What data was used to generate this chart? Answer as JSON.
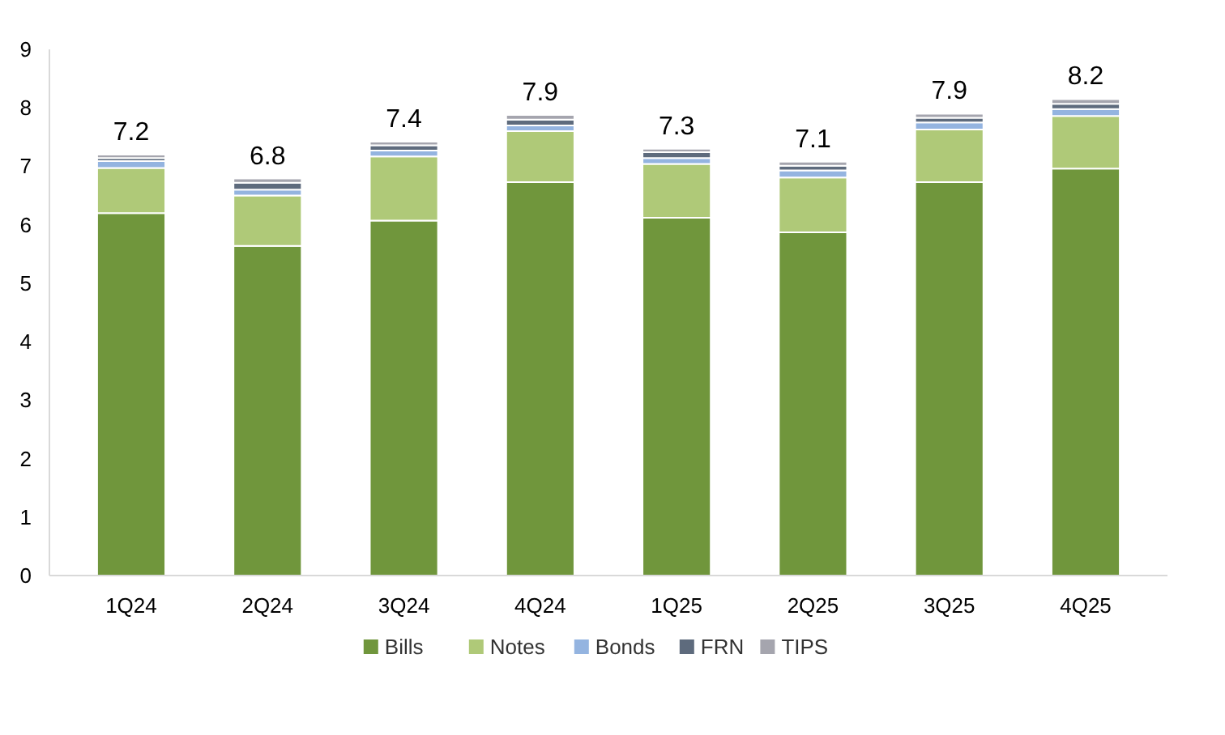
{
  "chart_data": {
    "type": "bar",
    "stacked": true,
    "categories": [
      "1Q24",
      "2Q24",
      "3Q24",
      "4Q24",
      "1Q25",
      "2Q25",
      "3Q25",
      "4Q25"
    ],
    "series": [
      {
        "name": "Bills",
        "color": "#70963c",
        "values": [
          6.2,
          5.64,
          6.07,
          6.73,
          6.12,
          5.87,
          6.73,
          6.96
        ]
      },
      {
        "name": "Notes",
        "color": "#afc978",
        "values": [
          0.77,
          0.86,
          1.1,
          0.87,
          0.92,
          0.94,
          0.9,
          0.9
        ]
      },
      {
        "name": "Bonds",
        "color": "#94b4e0",
        "values": [
          0.12,
          0.1,
          0.1,
          0.1,
          0.1,
          0.12,
          0.12,
          0.12
        ]
      },
      {
        "name": "FRN",
        "color": "#5e6b7d",
        "values": [
          0.05,
          0.12,
          0.09,
          0.1,
          0.1,
          0.08,
          0.08,
          0.09
        ]
      },
      {
        "name": "TIPS",
        "color": "#a5a5ae",
        "values": [
          0.06,
          0.07,
          0.06,
          0.08,
          0.06,
          0.07,
          0.07,
          0.08
        ]
      }
    ],
    "totals": [
      "7.2",
      "6.8",
      "7.4",
      "7.9",
      "7.3",
      "7.1",
      "7.9",
      "8.2"
    ],
    "ylim": [
      0,
      9
    ],
    "yticks": [
      0,
      1,
      2,
      3,
      4,
      5,
      6,
      7,
      8,
      9
    ],
    "grid": false,
    "legend": "bottom"
  }
}
